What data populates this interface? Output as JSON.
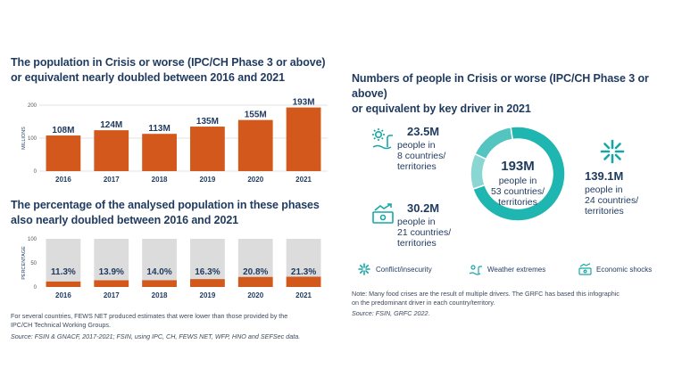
{
  "left": {
    "chart1": {
      "title_line1": "The population in Crisis or worse (IPC/CH Phase 3 or above)",
      "title_line2": "or equivalent nearly doubled between 2016 and 2021"
    },
    "chart2": {
      "title_line1": "The percentage of the analysed population in these phases",
      "title_line2": "also nearly doubled between 2016 and 2021"
    },
    "note_line1": "For several countries, FEWS NET produced estimates that were lower than those provided by the",
    "note_line2": "IPC/CH Technical Working Groups.",
    "source": "Source: FSIN & GNACF, 2017-2021; FSIN, using IPC, CH, FEWS NET, WFP, HNO and SEFSec data."
  },
  "right": {
    "title_line1": "Numbers of people in Crisis or worse (IPC/CH Phase 3 or above)",
    "title_line2": "or equivalent by key driver in 2021",
    "center": {
      "value": "193M",
      "desc_lines": [
        "people in",
        "53 countries/",
        "territories"
      ]
    },
    "drivers": [
      {
        "value": "23.5M",
        "desc_lines": [
          "people in",
          "8 countries/",
          "territories"
        ],
        "icon": "weather-icon"
      },
      {
        "value": "30.2M",
        "desc_lines": [
          "people in",
          "21 countries/",
          "territories"
        ],
        "icon": "economic-shocks-icon"
      },
      {
        "value": "139.1M",
        "desc_lines": [
          "people in",
          "24 countries/",
          "territories"
        ],
        "icon": "conflict-icon"
      }
    ],
    "legend": [
      {
        "label": "Conflict/insecurity",
        "icon": "conflict-icon"
      },
      {
        "label": "Weather extremes",
        "icon": "weather-icon"
      },
      {
        "label": "Economic shocks",
        "icon": "economic-shocks-icon"
      }
    ],
    "note_line1": "Note: Many food crises are the result of multiple drivers. The GRFC has based this infographic",
    "note_line2": "on the predominant driver in each country/territory.",
    "source": "Source: FSIN, GRFC 2022."
  },
  "colors": {
    "bar": "#d2591b",
    "bar_bg": "#dcdcdc",
    "title": "#1f3a5f",
    "ring_conflict": "#1fb5b0",
    "ring_weather": "#8ad6d3",
    "ring_economic": "#53c4c0",
    "icon_teal": "#17a6a6"
  },
  "chart_data": [
    {
      "type": "bar",
      "categories": [
        "2016",
        "2017",
        "2018",
        "2019",
        "2020",
        "2021"
      ],
      "values": [
        108,
        124,
        113,
        135,
        155,
        193
      ],
      "data_labels": [
        "108M",
        "124M",
        "113M",
        "135M",
        "155M",
        "193M"
      ],
      "ylabel": "MILLIONS",
      "ylim": [
        0,
        200
      ],
      "yticks": [
        "0",
        "100",
        "200"
      ],
      "grid": true
    },
    {
      "type": "bar",
      "categories": [
        "2016",
        "2017",
        "2018",
        "2019",
        "2020",
        "2021"
      ],
      "values": [
        11.3,
        13.9,
        14.0,
        16.3,
        20.8,
        21.3
      ],
      "data_labels": [
        "11.3%",
        "13.9%",
        "14.0%",
        "16.3%",
        "20.8%",
        "21.3%"
      ],
      "ylabel": "PERCENTAGE",
      "ylim": [
        0,
        100
      ],
      "yticks": [
        "0",
        "50",
        "100"
      ]
    },
    {
      "type": "pie",
      "labels": [
        "Conflict/insecurity",
        "Weather extremes",
        "Economic shocks"
      ],
      "values": [
        139.1,
        23.5,
        30.2
      ],
      "total": 193
    }
  ]
}
